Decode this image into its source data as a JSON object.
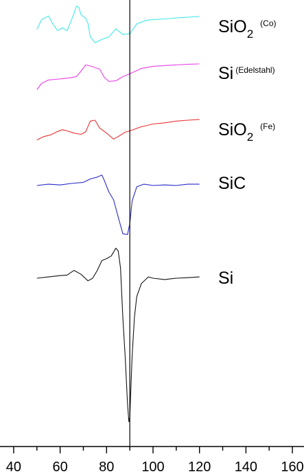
{
  "chart_data": {
    "type": "line",
    "title": "",
    "xlabel": "",
    "ylabel": "",
    "xlim": [
      35,
      165
    ],
    "x_ticks": [
      40,
      60,
      80,
      100,
      120,
      140,
      160
    ],
    "x_tick_labels": [
      "40",
      "60",
      "80",
      "100",
      "120",
      "140",
      "160"
    ],
    "reference_line_x": 90,
    "y_axis_shown": false,
    "grid": false,
    "legend": "none",
    "series": [
      {
        "label_main": "SiO",
        "label_sub": "2",
        "label_note": "(Co)",
        "color": "#3fe8e8",
        "points": [
          [
            50,
            0.25
          ],
          [
            52,
            0.65
          ],
          [
            55,
            0.8
          ],
          [
            57,
            0.45
          ],
          [
            59,
            0.2
          ],
          [
            61,
            0.32
          ],
          [
            63,
            0.2
          ],
          [
            66,
            0.9
          ],
          [
            67,
            1.2
          ],
          [
            68,
            1.15
          ],
          [
            69,
            0.85
          ],
          [
            71,
            0.7
          ],
          [
            72,
            0.5
          ],
          [
            73,
            -0.05
          ],
          [
            75,
            -0.28
          ],
          [
            78,
            -0.15
          ],
          [
            81,
            -0.05
          ],
          [
            84,
            0.28
          ],
          [
            87,
            0.05
          ],
          [
            90,
            0.08
          ],
          [
            93,
            0.48
          ],
          [
            97,
            0.62
          ],
          [
            100,
            0.65
          ],
          [
            105,
            0.68
          ],
          [
            110,
            0.72
          ],
          [
            115,
            0.75
          ],
          [
            120,
            0.78
          ]
        ]
      },
      {
        "label_main": "Si",
        "label_note": "(Edelstahl)",
        "color": "#e83ee8",
        "points": [
          [
            50,
            -0.35
          ],
          [
            52,
            -0.05
          ],
          [
            55,
            0.12
          ],
          [
            58,
            0.15
          ],
          [
            61,
            0.18
          ],
          [
            64,
            0.22
          ],
          [
            67,
            0.28
          ],
          [
            69,
            0.55
          ],
          [
            71,
            0.85
          ],
          [
            73,
            0.8
          ],
          [
            75,
            0.72
          ],
          [
            77,
            0.65
          ],
          [
            79,
            0.25
          ],
          [
            81,
            0.05
          ],
          [
            84,
            0.08
          ],
          [
            87,
            0.28
          ],
          [
            90,
            0.42
          ],
          [
            95,
            0.68
          ],
          [
            100,
            0.78
          ],
          [
            105,
            0.82
          ],
          [
            110,
            0.85
          ],
          [
            115,
            0.88
          ],
          [
            120,
            0.9
          ]
        ]
      },
      {
        "label_main": "SiO",
        "label_sub": "2",
        "label_note": "(Fe)",
        "color": "#e83030",
        "points": [
          [
            50,
            -0.15
          ],
          [
            53,
            0.05
          ],
          [
            56,
            0.15
          ],
          [
            59,
            0.35
          ],
          [
            61,
            0.45
          ],
          [
            63,
            0.38
          ],
          [
            66,
            0.25
          ],
          [
            69,
            0.18
          ],
          [
            71,
            0.32
          ],
          [
            73,
            0.95
          ],
          [
            75,
            1.0
          ],
          [
            77,
            0.55
          ],
          [
            80,
            0.25
          ],
          [
            83,
            -0.1
          ],
          [
            85,
            0.05
          ],
          [
            88,
            0.3
          ],
          [
            90,
            0.38
          ],
          [
            95,
            0.62
          ],
          [
            100,
            0.78
          ],
          [
            105,
            0.85
          ],
          [
            110,
            0.95
          ],
          [
            115,
            1.0
          ],
          [
            120,
            1.05
          ]
        ]
      },
      {
        "label_main": "SiC",
        "color": "#2828c8",
        "points": [
          [
            50,
            0.0
          ],
          [
            55,
            0.05
          ],
          [
            60,
            0.02
          ],
          [
            65,
            0.08
          ],
          [
            70,
            0.12
          ],
          [
            73,
            0.25
          ],
          [
            76,
            0.32
          ],
          [
            78,
            0.4
          ],
          [
            79,
            0.2
          ],
          [
            81,
            -0.25
          ],
          [
            83,
            -0.55
          ],
          [
            85,
            -1.2
          ],
          [
            87,
            -1.85
          ],
          [
            89,
            -1.88
          ],
          [
            90,
            -1.45
          ],
          [
            91,
            -0.6
          ],
          [
            93,
            -0.05
          ],
          [
            96,
            0.05
          ],
          [
            100,
            0.0
          ],
          [
            105,
            0.02
          ],
          [
            110,
            0.0
          ],
          [
            115,
            0.05
          ],
          [
            120,
            0.05
          ]
        ]
      },
      {
        "label_main": "Si",
        "color": "#111111",
        "points": [
          [
            50,
            0.0
          ],
          [
            55,
            0.05
          ],
          [
            60,
            0.1
          ],
          [
            63,
            0.12
          ],
          [
            66,
            0.3
          ],
          [
            69,
            0.15
          ],
          [
            72,
            -0.1
          ],
          [
            74,
            0.0
          ],
          [
            76,
            0.3
          ],
          [
            78,
            0.68
          ],
          [
            80,
            0.75
          ],
          [
            82,
            0.85
          ],
          [
            84,
            1.15
          ],
          [
            85,
            1.05
          ],
          [
            86,
            0.4
          ],
          [
            87,
            -1.5
          ],
          [
            88,
            -3.0
          ],
          [
            89,
            -4.8
          ],
          [
            89.6,
            -5.5
          ],
          [
            90,
            -5.3
          ],
          [
            91,
            -3.0
          ],
          [
            92,
            -1.5
          ],
          [
            93,
            -0.7
          ],
          [
            95,
            -0.2
          ],
          [
            98,
            0.05
          ],
          [
            100,
            0.0
          ],
          [
            105,
            -0.05
          ],
          [
            110,
            0.0
          ],
          [
            115,
            0.02
          ],
          [
            120,
            0.05
          ]
        ]
      }
    ]
  }
}
